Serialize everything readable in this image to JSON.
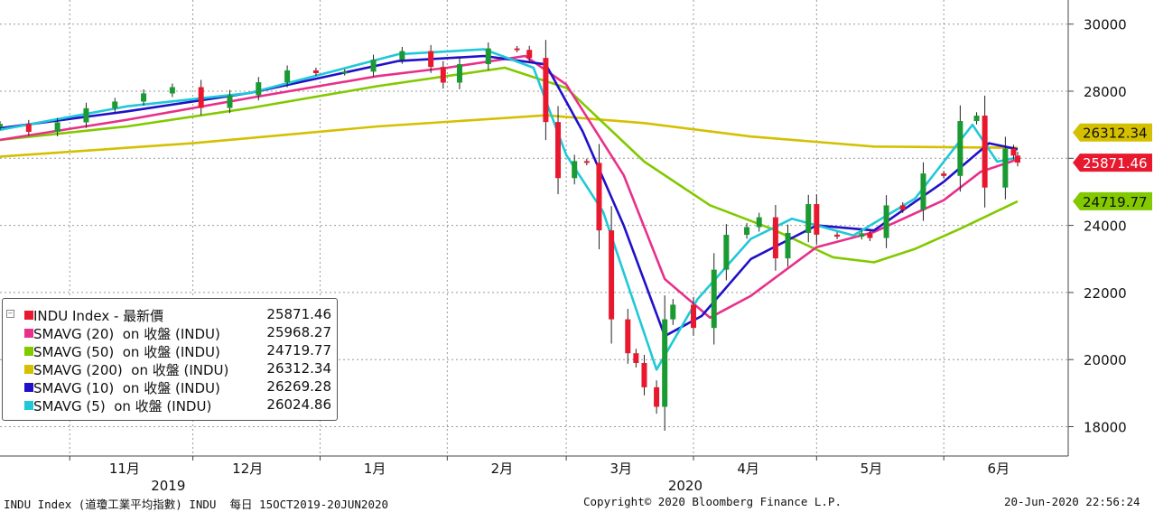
{
  "chart_data": {
    "type": "candlestick",
    "title": "",
    "ylim": [
      17000,
      30800
    ],
    "y_ticks": [
      18000,
      20000,
      22000,
      24000,
      26000,
      28000,
      30000
    ],
    "y_ticks_labels": [
      "18000",
      "20000",
      "22000",
      "24000",
      "26000",
      "28000",
      "30000"
    ],
    "grid": true,
    "month_labels": [
      "11月",
      "12月",
      "1月",
      "2月",
      "3月",
      "4月",
      "5月",
      "6月"
    ],
    "year_labels": [
      "2019",
      "2020"
    ],
    "x_range": [
      "2019-10-15",
      "2020-06-20"
    ],
    "candles": {
      "name": "INDU Index - 最新價",
      "up_color": "#1a9a32",
      "down_color": "#e8182e",
      "closes": [
        {
          "date": "2019-10-15",
          "close": 27025
        },
        {
          "date": "2019-10-22",
          "close": 26788
        },
        {
          "date": "2019-10-29",
          "close": 27071
        },
        {
          "date": "2019-11-05",
          "close": 27492
        },
        {
          "date": "2019-11-12",
          "close": 27691
        },
        {
          "date": "2019-11-19",
          "close": 27934
        },
        {
          "date": "2019-11-26",
          "close": 28121
        },
        {
          "date": "2019-12-03",
          "close": 27502
        },
        {
          "date": "2019-12-10",
          "close": 27881
        },
        {
          "date": "2019-12-17",
          "close": 28267
        },
        {
          "date": "2019-12-24",
          "close": 28621
        },
        {
          "date": "2019-12-31",
          "close": 28538
        },
        {
          "date": "2020-01-07",
          "close": 28583
        },
        {
          "date": "2020-01-14",
          "close": 28940
        },
        {
          "date": "2020-01-21",
          "close": 29196
        },
        {
          "date": "2020-01-28",
          "close": 28723
        },
        {
          "date": "2020-01-31",
          "close": 28256
        },
        {
          "date": "2020-02-04",
          "close": 28807
        },
        {
          "date": "2020-02-11",
          "close": 29276
        },
        {
          "date": "2020-02-18",
          "close": 29232
        },
        {
          "date": "2020-02-21",
          "close": 28992
        },
        {
          "date": "2020-02-25",
          "close": 27081
        },
        {
          "date": "2020-02-28",
          "close": 25409
        },
        {
          "date": "2020-03-03",
          "close": 25917
        },
        {
          "date": "2020-03-06",
          "close": 25864
        },
        {
          "date": "2020-03-09",
          "close": 23851
        },
        {
          "date": "2020-03-12",
          "close": 21200
        },
        {
          "date": "2020-03-16",
          "close": 20188
        },
        {
          "date": "2020-03-18",
          "close": 19898
        },
        {
          "date": "2020-03-20",
          "close": 19174
        },
        {
          "date": "2020-03-23",
          "close": 18592
        },
        {
          "date": "2020-03-25",
          "close": 21200
        },
        {
          "date": "2020-03-27",
          "close": 21636
        },
        {
          "date": "2020-04-01",
          "close": 20943
        },
        {
          "date": "2020-04-06",
          "close": 22680
        },
        {
          "date": "2020-04-09",
          "close": 23719
        },
        {
          "date": "2020-04-14",
          "close": 23949
        },
        {
          "date": "2020-04-17",
          "close": 24242
        },
        {
          "date": "2020-04-21",
          "close": 23018
        },
        {
          "date": "2020-04-24",
          "close": 23775
        },
        {
          "date": "2020-04-29",
          "close": 24634
        },
        {
          "date": "2020-05-01",
          "close": 23724
        },
        {
          "date": "2020-05-06",
          "close": 23664
        },
        {
          "date": "2020-05-12",
          "close": 23764
        },
        {
          "date": "2020-05-14",
          "close": 23625
        },
        {
          "date": "2020-05-18",
          "close": 24597
        },
        {
          "date": "2020-05-22",
          "close": 24465
        },
        {
          "date": "2020-05-27",
          "close": 25548
        },
        {
          "date": "2020-06-01",
          "close": 25475
        },
        {
          "date": "2020-06-05",
          "close": 27110
        },
        {
          "date": "2020-06-09",
          "close": 27272
        },
        {
          "date": "2020-06-11",
          "close": 25128
        },
        {
          "date": "2020-06-16",
          "close": 26290
        },
        {
          "date": "2020-06-18",
          "close": 26080
        },
        {
          "date": "2020-06-19",
          "close": 25871
        }
      ]
    },
    "series": [
      {
        "name": "SMAVG (20) on 收盤 (INDU)",
        "color": "#e8308a",
        "last": "25968.27",
        "points": [
          [
            "2019-10-15",
            26550
          ],
          [
            "2019-11-15",
            27150
          ],
          [
            "2019-12-15",
            27800
          ],
          [
            "2020-01-15",
            28450
          ],
          [
            "2020-02-01",
            28700
          ],
          [
            "2020-02-20",
            29050
          ],
          [
            "2020-03-01",
            28200
          ],
          [
            "2020-03-15",
            25500
          ],
          [
            "2020-03-25",
            22400
          ],
          [
            "2020-04-05",
            21250
          ],
          [
            "2020-04-15",
            21900
          ],
          [
            "2020-05-01",
            23350
          ],
          [
            "2020-05-15",
            23800
          ],
          [
            "2020-06-01",
            24750
          ],
          [
            "2020-06-10",
            25600
          ],
          [
            "2020-06-19",
            25968
          ]
        ]
      },
      {
        "name": "SMAVG (50) on 收盤 (INDU)",
        "color": "#82c900",
        "last": "24719.77",
        "points": [
          [
            "2019-10-15",
            26550
          ],
          [
            "2019-11-15",
            26950
          ],
          [
            "2019-12-15",
            27500
          ],
          [
            "2020-01-15",
            28150
          ],
          [
            "2020-02-15",
            28700
          ],
          [
            "2020-03-01",
            28100
          ],
          [
            "2020-03-20",
            25900
          ],
          [
            "2020-04-05",
            24600
          ],
          [
            "2020-04-20",
            23900
          ],
          [
            "2020-05-05",
            23050
          ],
          [
            "2020-05-15",
            22900
          ],
          [
            "2020-05-25",
            23300
          ],
          [
            "2020-06-05",
            23900
          ],
          [
            "2020-06-19",
            24720
          ]
        ]
      },
      {
        "name": "SMAVG (200) on 收盤 (INDU)",
        "color": "#d4c000",
        "last": "26312.34",
        "points": [
          [
            "2019-10-15",
            26050
          ],
          [
            "2019-12-01",
            26450
          ],
          [
            "2020-01-15",
            26950
          ],
          [
            "2020-02-25",
            27280
          ],
          [
            "2020-03-20",
            27050
          ],
          [
            "2020-04-15",
            26650
          ],
          [
            "2020-05-15",
            26350
          ],
          [
            "2020-06-19",
            26312
          ]
        ]
      },
      {
        "name": "SMAVG (10) on 收盤 (INDU)",
        "color": "#2010c8",
        "last": "26269.28",
        "points": [
          [
            "2019-10-15",
            26900
          ],
          [
            "2019-11-15",
            27400
          ],
          [
            "2019-12-15",
            27950
          ],
          [
            "2020-01-20",
            28900
          ],
          [
            "2020-02-10",
            29050
          ],
          [
            "2020-02-25",
            28800
          ],
          [
            "2020-03-05",
            26800
          ],
          [
            "2020-03-15",
            24000
          ],
          [
            "2020-03-25",
            20700
          ],
          [
            "2020-04-03",
            21300
          ],
          [
            "2020-04-15",
            23000
          ],
          [
            "2020-05-01",
            24000
          ],
          [
            "2020-05-15",
            23850
          ],
          [
            "2020-06-01",
            25300
          ],
          [
            "2020-06-12",
            26450
          ],
          [
            "2020-06-19",
            26269
          ]
        ]
      },
      {
        "name": "SMAVG (5) on 收盤 (INDU)",
        "color": "#20c8d8",
        "last": "26024.86",
        "points": [
          [
            "2019-10-15",
            26850
          ],
          [
            "2019-11-15",
            27550
          ],
          [
            "2019-12-15",
            27950
          ],
          [
            "2020-01-20",
            29100
          ],
          [
            "2020-02-10",
            29250
          ],
          [
            "2020-02-22",
            28700
          ],
          [
            "2020-03-01",
            26100
          ],
          [
            "2020-03-10",
            24400
          ],
          [
            "2020-03-23",
            19700
          ],
          [
            "2020-04-02",
            21800
          ],
          [
            "2020-04-15",
            23600
          ],
          [
            "2020-04-25",
            24200
          ],
          [
            "2020-05-10",
            23700
          ],
          [
            "2020-05-25",
            24800
          ],
          [
            "2020-06-08",
            27000
          ],
          [
            "2020-06-14",
            25900
          ],
          [
            "2020-06-19",
            26025
          ]
        ]
      }
    ],
    "price_tags": [
      {
        "label": "26312.34",
        "bg": "#d4c000",
        "fg": "#111111"
      },
      {
        "label": "25871.46",
        "bg": "#e8182e",
        "fg": "#ffffff"
      },
      {
        "label": "24719.77",
        "bg": "#82c900",
        "fg": "#111111"
      }
    ],
    "legend_position": "bottom-left",
    "legend": [
      {
        "name": "INDU Index - 最新價",
        "value": "25871.46",
        "color": "#e8182e"
      },
      {
        "name": "SMAVG (20)  on 收盤 (INDU)",
        "value": "25968.27",
        "color": "#e8308a"
      },
      {
        "name": "SMAVG (50)  on 收盤 (INDU)",
        "value": "24719.77",
        "color": "#82c900"
      },
      {
        "name": "SMAVG (200)  on 收盤 (INDU)",
        "value": "26312.34",
        "color": "#d4c000"
      },
      {
        "name": "SMAVG (10)  on 收盤 (INDU)",
        "value": "26269.28",
        "color": "#2010c8"
      },
      {
        "name": "SMAVG (5)  on 收盤 (INDU)",
        "value": "26024.86",
        "color": "#20c8d8"
      }
    ]
  },
  "footer": {
    "left": "INDU Index (道瓊工業平均指數) INDU  每日 15OCT2019-20JUN2020",
    "center": "Copyright© 2020 Bloomberg Finance L.P.",
    "right": "20-Jun-2020 22:56:24"
  }
}
